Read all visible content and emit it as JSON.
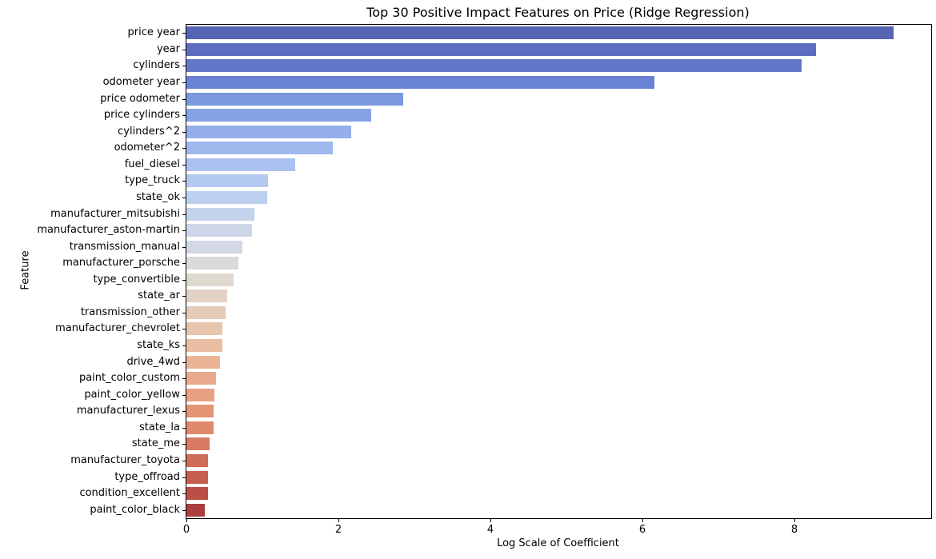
{
  "colors": {
    "background": "#ffffff",
    "spine": "#000000",
    "text": "#000000"
  },
  "chart_data": {
    "type": "bar",
    "orientation": "horizontal",
    "colormap": "coolwarm",
    "title": "Top 30 Positive Impact Features on Price (Ridge Regression)",
    "xlabel": "Log Scale of Coefficient",
    "ylabel": "Feature",
    "xlim": [
      0,
      9.8
    ],
    "xticks": [
      0,
      2,
      4,
      6,
      8
    ],
    "grid": false,
    "legend": false,
    "categories": [
      "price year",
      "year",
      "cylinders",
      "odometer year",
      "price odometer",
      "price cylinders",
      "cylinders^2",
      "odometer^2",
      "fuel_diesel",
      "type_truck",
      "state_ok",
      "manufacturer_mitsubishi",
      "manufacturer_aston-martin",
      "transmission_manual",
      "manufacturer_porsche",
      "type_convertible",
      "state_ar",
      "transmission_other",
      "manufacturer_chevrolet",
      "state_ks",
      "drive_4wd",
      "paint_color_custom",
      "paint_color_yellow",
      "manufacturer_lexus",
      "state_la",
      "state_me",
      "manufacturer_toyota",
      "type_offroad",
      "condition_excellent",
      "paint_color_black"
    ],
    "values": [
      9.31,
      8.28,
      8.09,
      6.16,
      2.85,
      2.43,
      2.17,
      1.93,
      1.43,
      1.07,
      1.06,
      0.89,
      0.86,
      0.74,
      0.68,
      0.62,
      0.54,
      0.52,
      0.47,
      0.47,
      0.44,
      0.39,
      0.37,
      0.36,
      0.36,
      0.31,
      0.28,
      0.28,
      0.28,
      0.24
    ],
    "bar_colors": [
      "#5764b4",
      "#5d6ec0",
      "#6377c9",
      "#6a82d3",
      "#7b97de",
      "#87a3e6",
      "#93aeea",
      "#9fb8ee",
      "#aac2f0",
      "#b4c9f0",
      "#bdd0ef",
      "#c5d4ed",
      "#cdd7e9",
      "#d3d9e4",
      "#dadad9",
      "#dfd8d0",
      "#e3d2c5",
      "#e5ccba",
      "#e7c5ae",
      "#e9bda2",
      "#eab497",
      "#e9aa8b",
      "#e7a082",
      "#e49576",
      "#df886c",
      "#d87b62",
      "#cf6d58",
      "#c65f4e",
      "#ba4f46",
      "#ab3d3e"
    ]
  }
}
